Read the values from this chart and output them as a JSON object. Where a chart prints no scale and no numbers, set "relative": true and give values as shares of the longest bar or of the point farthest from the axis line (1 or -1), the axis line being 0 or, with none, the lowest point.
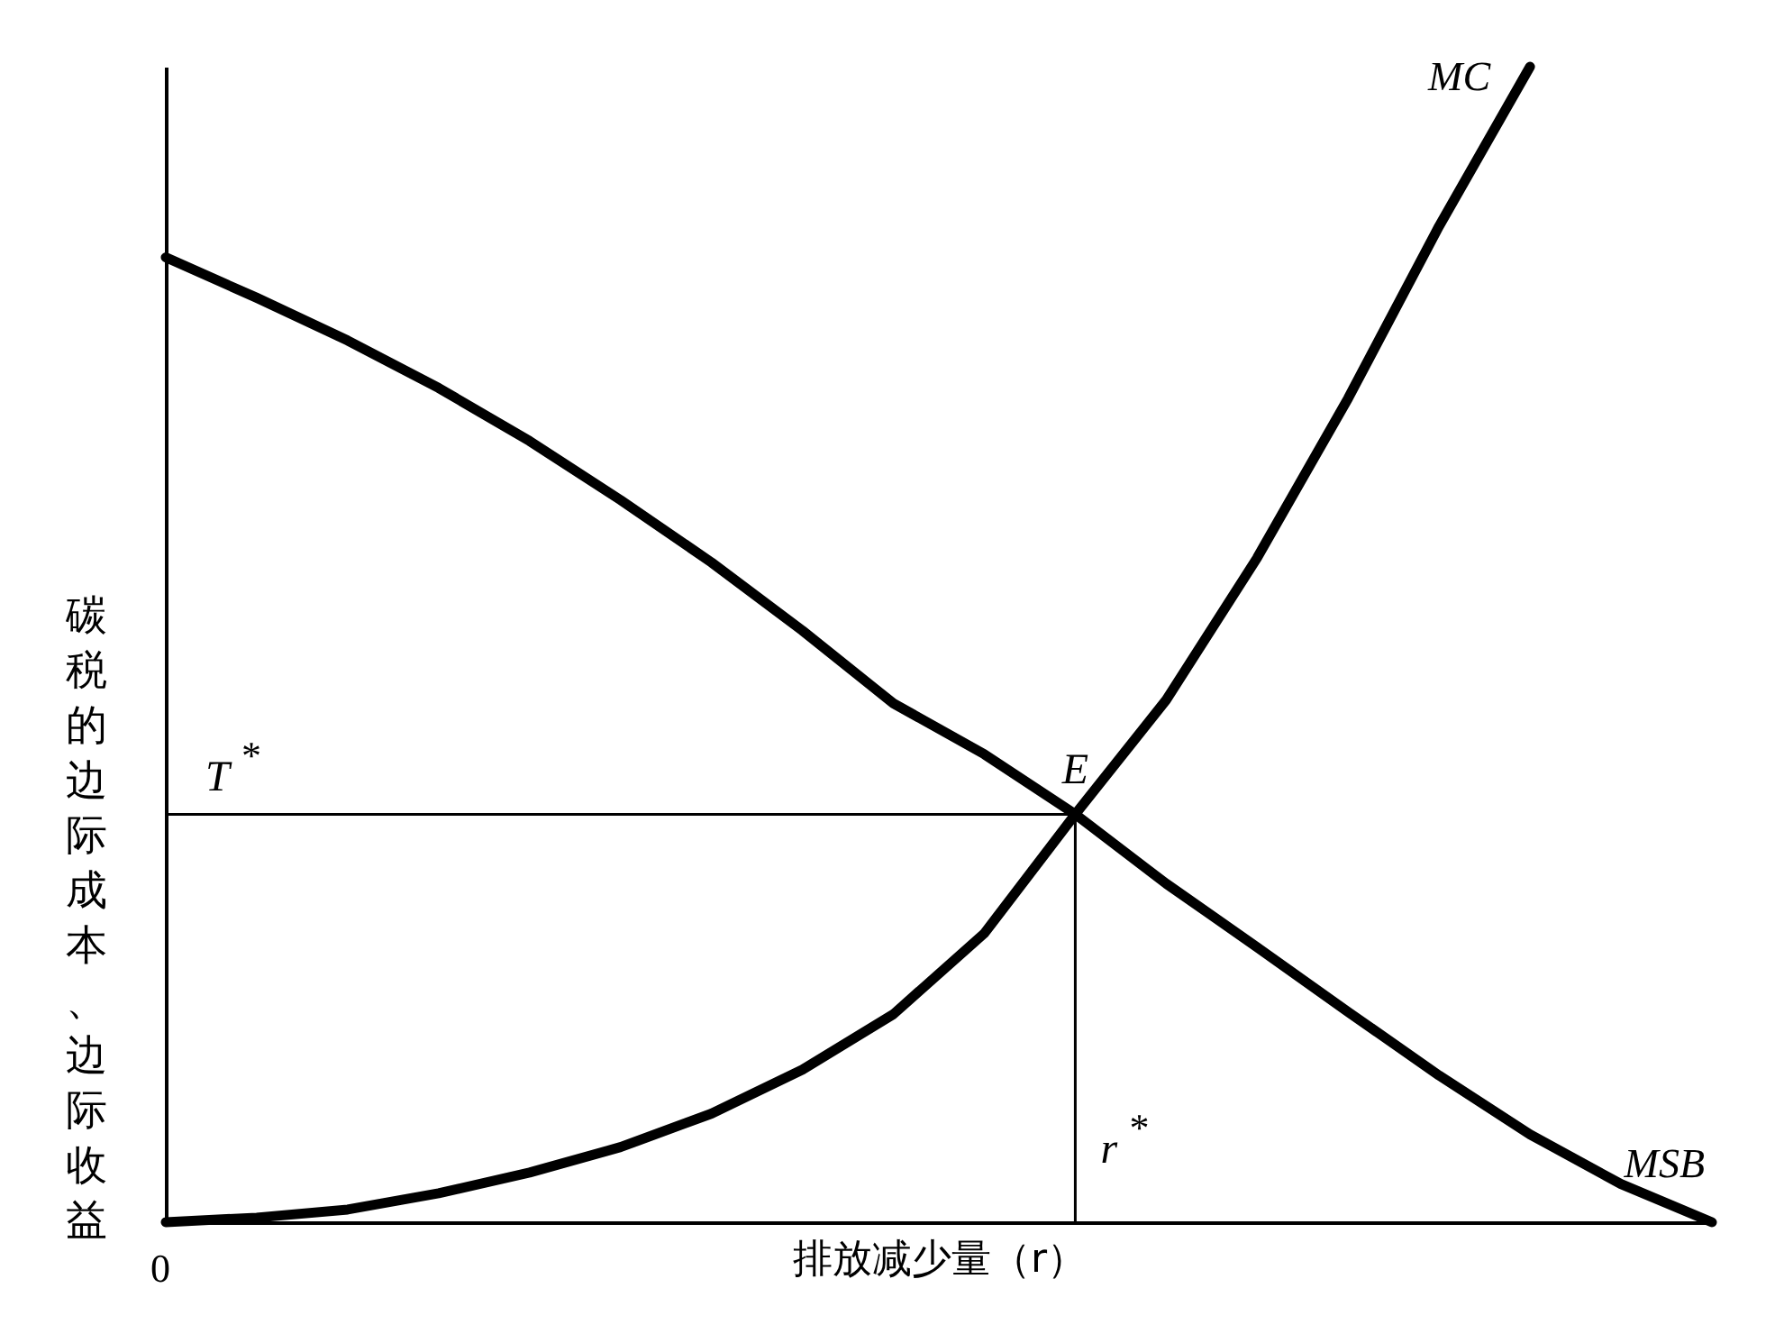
{
  "chart_data": {
    "type": "line",
    "relative": true,
    "xlabel": "排放减少量（r）",
    "ylabel": "碳税的边际成本、边际收益",
    "categories": [
      null,
      null,
      null,
      null,
      null,
      null,
      null,
      null,
      null,
      null,
      null,
      null,
      null,
      null,
      null,
      null,
      null,
      null
    ],
    "series": [
      {
        "name": "MC",
        "color": "#000000",
        "values": [
          0,
          0.004,
          0.011,
          0.025,
          0.043,
          0.065,
          0.094,
          0.132,
          0.18,
          0.25,
          0.353,
          0.452,
          0.575,
          0.713,
          0.862,
          1,
          null,
          null
        ]
      },
      {
        "name": "MSB",
        "color": "#000000",
        "values": [
          0.835,
          0.8,
          0.763,
          0.722,
          0.676,
          0.625,
          0.571,
          0.512,
          0.449,
          0.405,
          0.353,
          0.293,
          0.238,
          0.182,
          0.127,
          0.076,
          0.033,
          0
        ]
      }
    ],
    "ref_lines": [
      {
        "axis": "y",
        "value": 0.353,
        "label": "T$^{*}$"
      },
      {
        "axis": "x",
        "label": "r$^{*}$"
      }
    ],
    "annotations": [
      {
        "text": "E",
        "y": 0.353
      },
      "0"
    ]
  }
}
